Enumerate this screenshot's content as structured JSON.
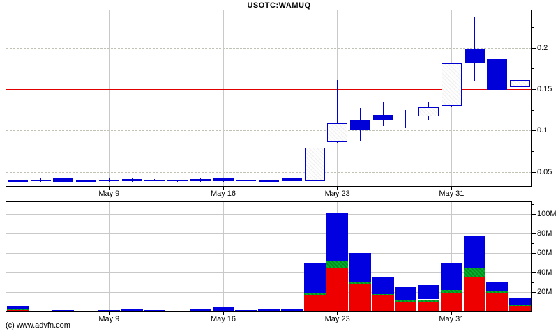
{
  "title": "USOTC:WAMUQ",
  "copyright": "(c) www.advfn.com",
  "colors": {
    "candle_blue": "#0000d8",
    "hollow_fill": "#fdfdfd",
    "red_line": "#e00000",
    "volume_red": "#ee0000",
    "volume_green": "#00a022",
    "volume_blue": "#0000e0",
    "grid": "#c9c9c9",
    "axis": "#000000"
  },
  "chart_data": [
    {
      "type": "candlestick",
      "title": "USOTC:WAMUQ",
      "ylabel": "price",
      "ylim": [
        0.033,
        0.245
      ],
      "grid": true,
      "legend_position": "none",
      "y_ticks": [
        {
          "v": 0.05,
          "label": "0.05"
        },
        {
          "v": 0.1,
          "label": "0.1"
        },
        {
          "v": 0.15,
          "label": "0.15"
        },
        {
          "v": 0.2,
          "label": "0.2"
        }
      ],
      "y_minor_ticks": [
        0.075,
        0.125,
        0.175,
        0.225
      ],
      "x_ticks": [
        {
          "i": 4,
          "label": "May 9"
        },
        {
          "i": 9,
          "label": "May 16"
        },
        {
          "i": 14,
          "label": "May 23"
        },
        {
          "i": 19,
          "label": "May 31"
        }
      ],
      "horizontal_line": 0.15,
      "candles": [
        {
          "d": "May 3",
          "o": 0.041,
          "h": 0.041,
          "l": 0.038,
          "c": 0.038
        },
        {
          "d": "May 4",
          "o": 0.0395,
          "h": 0.042,
          "l": 0.038,
          "c": 0.0392
        },
        {
          "d": "May 5",
          "o": 0.043,
          "h": 0.043,
          "l": 0.038,
          "c": 0.038
        },
        {
          "d": "May 6",
          "o": 0.041,
          "h": 0.042,
          "l": 0.038,
          "c": 0.0385
        },
        {
          "d": "May 9",
          "o": 0.041,
          "h": 0.043,
          "l": 0.038,
          "c": 0.039
        },
        {
          "d": "May 10",
          "o": 0.0385,
          "h": 0.0425,
          "l": 0.038,
          "c": 0.0415
        },
        {
          "d": "May 11",
          "o": 0.04,
          "h": 0.0415,
          "l": 0.0385,
          "c": 0.0395
        },
        {
          "d": "May 12",
          "o": 0.0395,
          "h": 0.0405,
          "l": 0.038,
          "c": 0.039
        },
        {
          "d": "May 13",
          "o": 0.0385,
          "h": 0.042,
          "l": 0.038,
          "c": 0.0415
        },
        {
          "d": "May 16",
          "o": 0.0425,
          "h": 0.0435,
          "l": 0.038,
          "c": 0.0385
        },
        {
          "d": "May 17",
          "o": 0.04,
          "h": 0.0475,
          "l": 0.0385,
          "c": 0.0395
        },
        {
          "d": "May 18",
          "o": 0.041,
          "h": 0.042,
          "l": 0.038,
          "c": 0.0385
        },
        {
          "d": "May 19",
          "o": 0.0425,
          "h": 0.0435,
          "l": 0.0385,
          "c": 0.039
        },
        {
          "d": "May 20",
          "o": 0.039,
          "h": 0.084,
          "l": 0.038,
          "c": 0.079
        },
        {
          "d": "May 23",
          "o": 0.086,
          "h": 0.161,
          "l": 0.085,
          "c": 0.109
        },
        {
          "d": "May 24",
          "o": 0.113,
          "h": 0.1275,
          "l": 0.088,
          "c": 0.101
        },
        {
          "d": "May 25",
          "o": 0.119,
          "h": 0.135,
          "l": 0.105,
          "c": 0.113
        },
        {
          "d": "May 26",
          "o": 0.118,
          "h": 0.125,
          "l": 0.104,
          "c": 0.117
        },
        {
          "d": "May 27",
          "o": 0.1175,
          "h": 0.135,
          "l": 0.113,
          "c": 0.128
        },
        {
          "d": "May 31",
          "o": 0.13,
          "h": 0.182,
          "l": 0.129,
          "c": 0.181
        },
        {
          "d": "Jun 1",
          "o": 0.198,
          "h": 0.237,
          "l": 0.16,
          "c": 0.181
        },
        {
          "d": "Jun 2",
          "o": 0.186,
          "h": 0.188,
          "l": 0.139,
          "c": 0.149
        },
        {
          "d": "Jun 3",
          "o": 0.1525,
          "h": 0.175,
          "l": 0.152,
          "c": 0.161,
          "wick": "red"
        }
      ]
    },
    {
      "type": "bar",
      "subtype": "stacked-volume",
      "ylabel": "volume",
      "ylim": [
        0,
        112
      ],
      "grid": true,
      "y_ticks": [
        {
          "v": 20,
          "label": "20M"
        },
        {
          "v": 40,
          "label": "40M"
        },
        {
          "v": 60,
          "label": "60M"
        },
        {
          "v": 80,
          "label": "80M"
        },
        {
          "v": 100,
          "label": "100M"
        }
      ],
      "y_minor_ticks": [
        10,
        30,
        50,
        70,
        90,
        110
      ],
      "x_ticks": [
        {
          "i": 4,
          "label": "May 9"
        },
        {
          "i": 9,
          "label": "May 16"
        },
        {
          "i": 14,
          "label": "May 23"
        },
        {
          "i": 19,
          "label": "May 31"
        }
      ],
      "series_order": [
        "red",
        "green",
        "blue"
      ],
      "bars": [
        {
          "d": "May 3",
          "red": 1.5,
          "green": 0.4,
          "blue": 4.0
        },
        {
          "d": "May 4",
          "red": 0,
          "green": 0,
          "blue": 1.0
        },
        {
          "d": "May 5",
          "red": 0,
          "green": 0.5,
          "blue": 1.0
        },
        {
          "d": "May 6",
          "red": 0,
          "green": 0,
          "blue": 1.0
        },
        {
          "d": "May 9",
          "red": 0,
          "green": 0,
          "blue": 1.4
        },
        {
          "d": "May 10",
          "red": 0,
          "green": 0.7,
          "blue": 1.4
        },
        {
          "d": "May 11",
          "red": 0,
          "green": 0,
          "blue": 1.2
        },
        {
          "d": "May 12",
          "red": 0,
          "green": 0,
          "blue": 0.9
        },
        {
          "d": "May 13",
          "red": 0,
          "green": 0.7,
          "blue": 1.4
        },
        {
          "d": "May 16",
          "red": 0,
          "green": 0.4,
          "blue": 3.8
        },
        {
          "d": "May 17",
          "red": 0,
          "green": 0,
          "blue": 1.3
        },
        {
          "d": "May 18",
          "red": 0,
          "green": 1.0,
          "blue": 1.4
        },
        {
          "d": "May 19",
          "red": 1.0,
          "green": 0,
          "blue": 1.5
        },
        {
          "d": "May 20",
          "red": 17,
          "green": 2,
          "blue": 30
        },
        {
          "d": "May 23",
          "red": 44,
          "green": 8,
          "blue": 49
        },
        {
          "d": "May 24",
          "red": 28.5,
          "green": 1.5,
          "blue": 30
        },
        {
          "d": "May 25",
          "red": 17,
          "green": 1,
          "blue": 17
        },
        {
          "d": "May 26",
          "red": 10,
          "green": 1.5,
          "blue": 13.5
        },
        {
          "d": "May 27",
          "red": 10,
          "green": 2.5,
          "blue": 14.5
        },
        {
          "d": "May 31",
          "red": 19,
          "green": 3,
          "blue": 27
        },
        {
          "d": "Jun 1",
          "red": 35,
          "green": 9,
          "blue": 34
        },
        {
          "d": "Jun 2",
          "red": 19.5,
          "green": 1.5,
          "blue": 9
        },
        {
          "d": "Jun 3",
          "red": 5.5,
          "green": 1,
          "blue": 7
        }
      ]
    }
  ]
}
